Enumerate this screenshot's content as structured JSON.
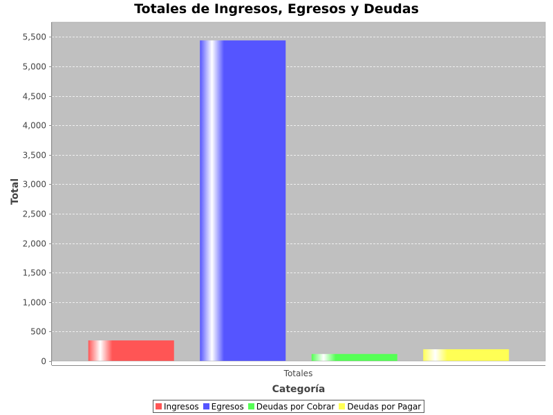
{
  "chart_data": {
    "type": "bar",
    "title": "Totales de Ingresos, Egresos y Deudas",
    "xlabel": "Categoría",
    "ylabel": "Total",
    "categories": [
      "Totales"
    ],
    "series": [
      {
        "name": "Ingresos",
        "values": [
          350
        ],
        "color": "#ff5555"
      },
      {
        "name": "Egresos",
        "values": [
          5440
        ],
        "color": "#5555ff"
      },
      {
        "name": "Deudas por Cobrar",
        "values": [
          120
        ],
        "color": "#55ff55"
      },
      {
        "name": "Deudas por Pagar",
        "values": [
          200
        ],
        "color": "#ffff55"
      }
    ],
    "ylim": [
      0,
      5750
    ],
    "yticks": [
      0,
      500,
      1000,
      1500,
      2000,
      2500,
      3000,
      3500,
      4000,
      4500,
      5000,
      5500
    ],
    "ytick_labels": [
      "0",
      "500",
      "1,000",
      "1,500",
      "2,000",
      "2,500",
      "3,000",
      "3,500",
      "4,000",
      "4,500",
      "5,000",
      "5,500"
    ],
    "grid": true,
    "plot_background": "#c0c0c0",
    "legend_position": "bottom"
  }
}
